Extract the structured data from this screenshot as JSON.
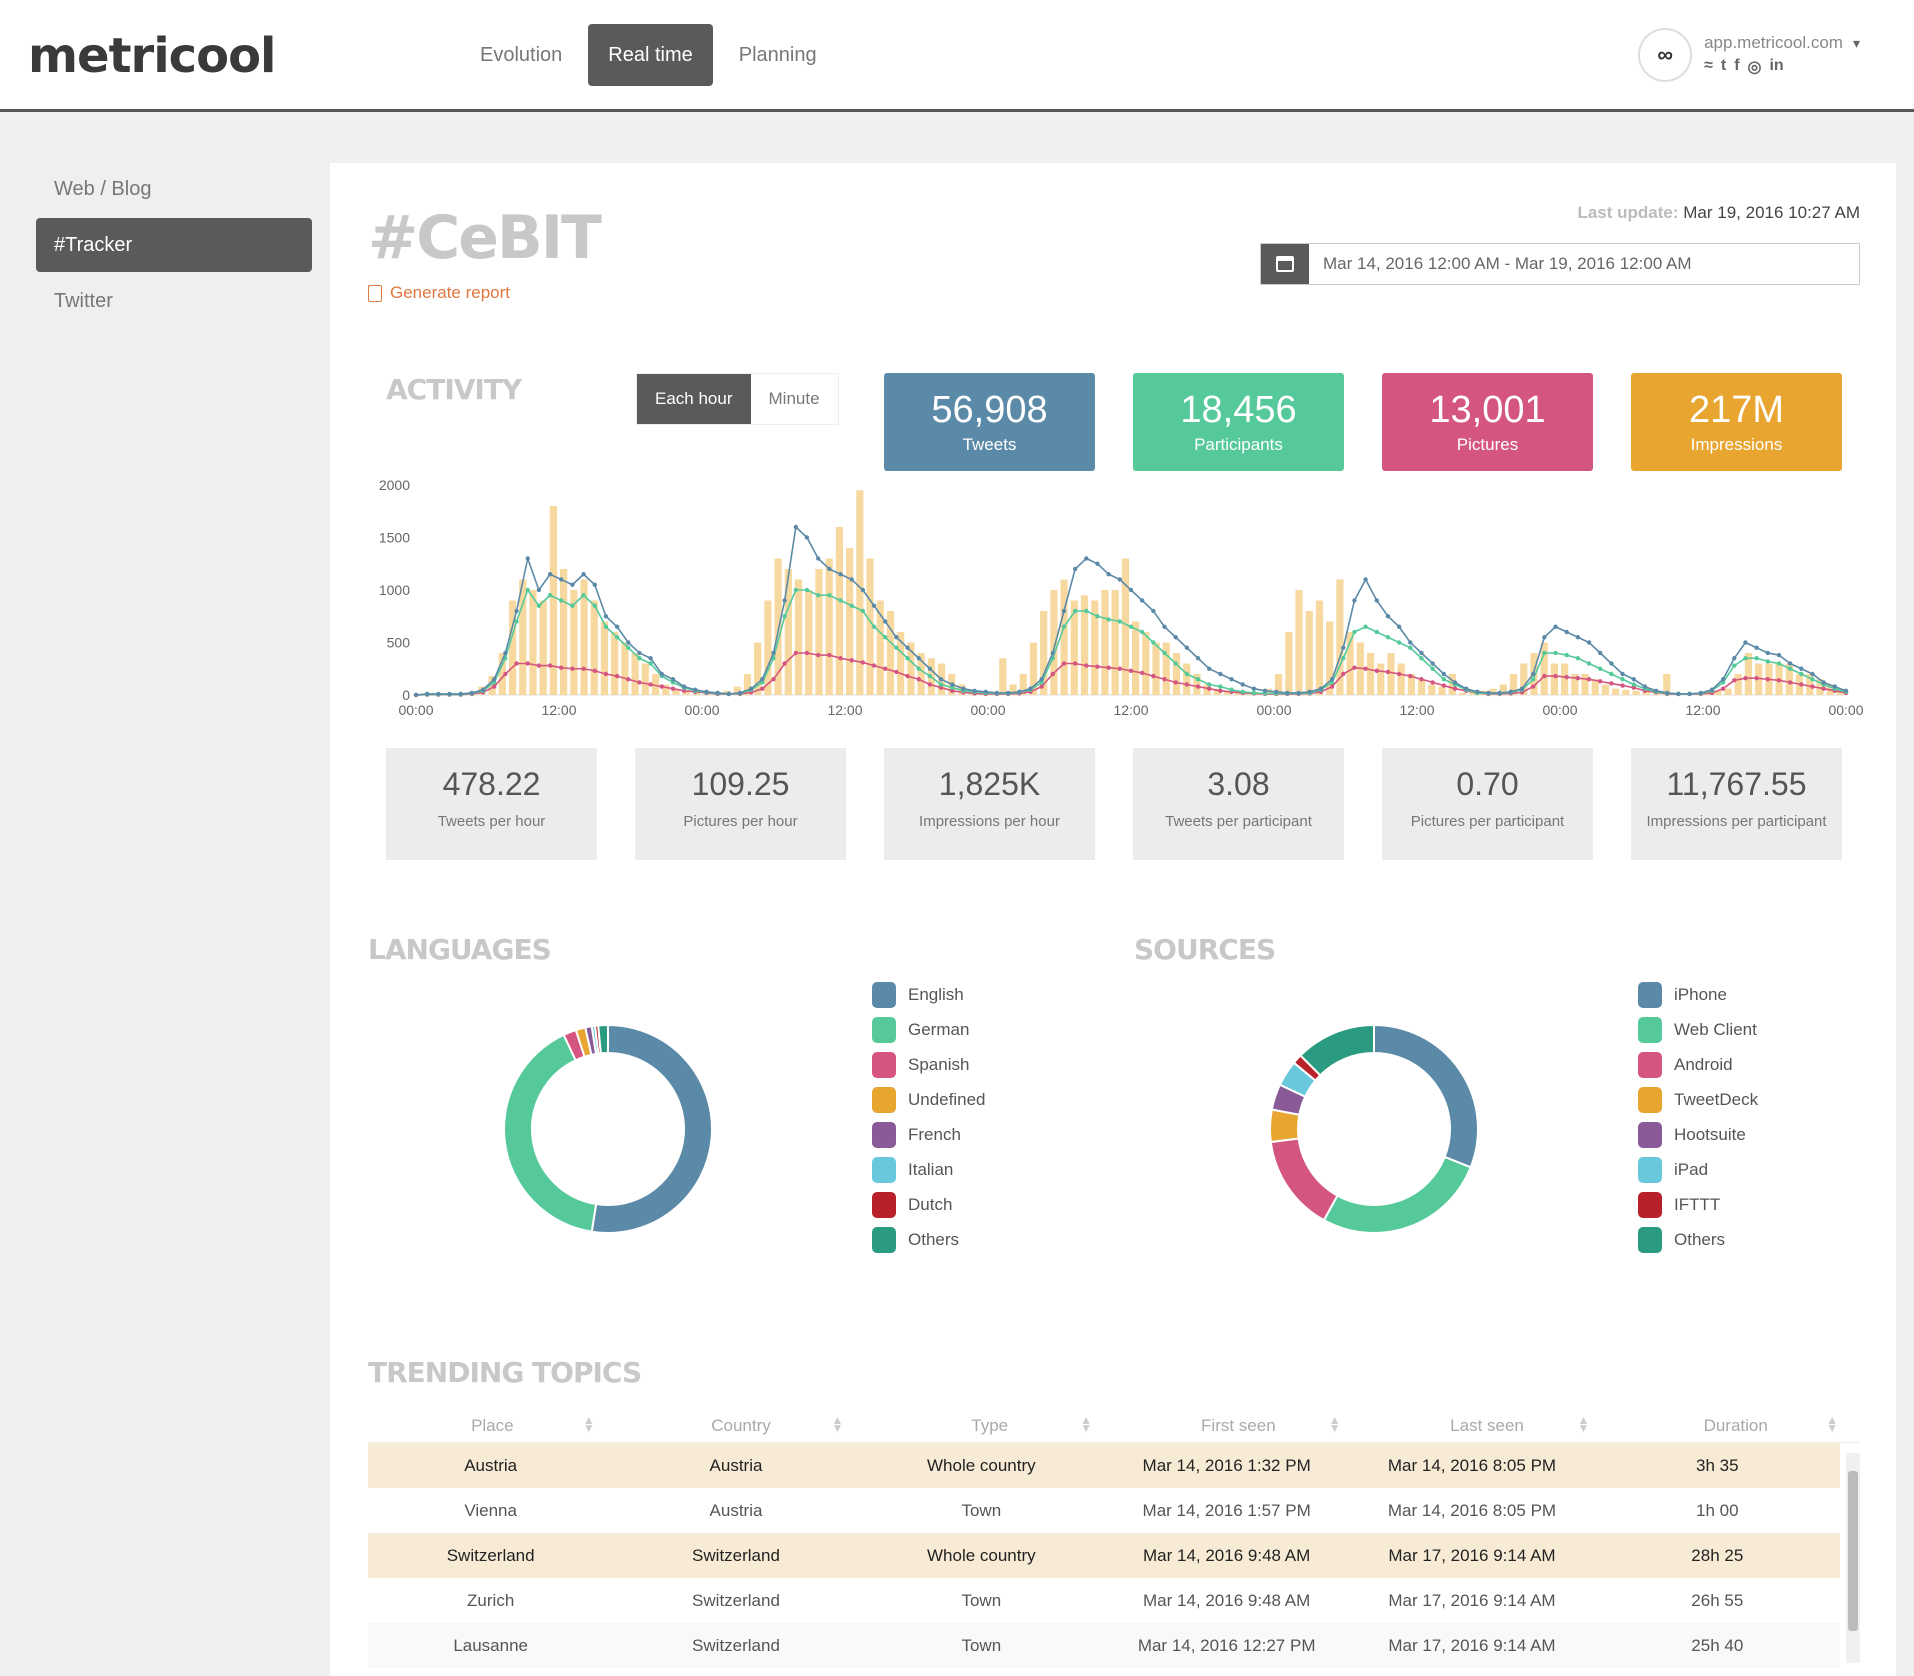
{
  "brand": "metricool",
  "nav": [
    "Evolution",
    "Real time",
    "Planning"
  ],
  "account": {
    "domain": "app.metricool.com",
    "avatar": "∞",
    "icons": [
      "rss-icon",
      "twitter-icon",
      "facebook-icon",
      "instagram-icon",
      "linkedin-icon"
    ]
  },
  "sidebar": [
    "Web / Blog",
    "#Tracker",
    "Twitter"
  ],
  "page": {
    "title": "#CeBIT",
    "generate_report": "Generate report",
    "last_update_label": "Last update:",
    "last_update_value": "Mar 19, 2016 10:27 AM",
    "date_range": "Mar 14, 2016 12:00 AM - Mar 19, 2016 12:00 AM"
  },
  "activity": {
    "title": "ACTIVITY",
    "toggle": [
      "Each hour",
      "Minute"
    ],
    "kpis": [
      {
        "value": "56,908",
        "label": "Tweets",
        "color": "#5b8aa8"
      },
      {
        "value": "18,456",
        "label": "Participants",
        "color": "#55c99a"
      },
      {
        "value": "13,001",
        "label": "Pictures",
        "color": "#d4557f"
      },
      {
        "value": "217M",
        "label": "Impressions",
        "color": "#e8a530"
      }
    ],
    "stats": [
      {
        "value": "478.22",
        "label": "Tweets per hour"
      },
      {
        "value": "109.25",
        "label": "Pictures per hour"
      },
      {
        "value": "1,825K",
        "label": "Impressions per hour"
      },
      {
        "value": "3.08",
        "label": "Tweets per participant"
      },
      {
        "value": "0.70",
        "label": "Pictures per participant"
      },
      {
        "value": "11,767.55",
        "label": "Impressions per participant"
      }
    ]
  },
  "chart_data": [
    {
      "type": "bar",
      "xticks": [
        "00:00",
        "12:00",
        "00:00",
        "12:00",
        "00:00",
        "12:00",
        "00:00",
        "12:00",
        "00:00",
        "12:00",
        "00:00"
      ],
      "yticks": [
        "0",
        "500",
        "1000",
        "1500",
        "2000"
      ],
      "ylim": [
        0,
        2000
      ],
      "bars": [
        0,
        0,
        0,
        0,
        0,
        30,
        80,
        180,
        400,
        900,
        1100,
        1000,
        900,
        1800,
        1200,
        1000,
        1100,
        900,
        700,
        600,
        500,
        400,
        300,
        200,
        100,
        60,
        40,
        20,
        10,
        20,
        40,
        80,
        200,
        500,
        900,
        1300,
        1200,
        1100,
        1000,
        1200,
        1300,
        1600,
        1400,
        1950,
        1300,
        900,
        800,
        600,
        500,
        400,
        350,
        300,
        200,
        100,
        50,
        40,
        30,
        350,
        100,
        200,
        500,
        800,
        1000,
        1100,
        900,
        950,
        900,
        1000,
        1000,
        1300,
        700,
        600,
        500,
        500,
        400,
        300,
        200,
        100,
        60,
        40,
        20,
        10,
        20,
        60,
        200,
        600,
        1000,
        800,
        900,
        700,
        1100,
        600,
        500,
        400,
        300,
        400,
        300,
        200,
        150,
        100,
        80,
        200,
        20,
        30,
        40,
        60,
        100,
        200,
        300,
        400,
        500,
        300,
        300,
        200,
        200,
        150,
        100,
        60,
        50,
        40,
        30,
        30,
        200,
        20,
        10,
        10,
        20,
        40,
        60,
        200,
        400,
        300,
        300,
        300,
        300,
        200,
        200,
        150,
        100,
        50
      ],
      "series": [
        {
          "name": "Tweets",
          "color": "#5b8aa8",
          "values": [
            0,
            10,
            10,
            10,
            10,
            20,
            50,
            150,
            400,
            800,
            1300,
            1000,
            1150,
            1100,
            1050,
            1150,
            1050,
            750,
            650,
            500,
            400,
            350,
            200,
            150,
            80,
            50,
            30,
            20,
            10,
            20,
            60,
            150,
            400,
            900,
            1600,
            1500,
            1300,
            1200,
            1150,
            1100,
            1000,
            850,
            700,
            550,
            450,
            350,
            250,
            150,
            100,
            60,
            40,
            30,
            20,
            20,
            30,
            60,
            150,
            400,
            800,
            1200,
            1300,
            1250,
            1150,
            1100,
            1000,
            900,
            800,
            650,
            550,
            450,
            350,
            250,
            200,
            150,
            100,
            60,
            40,
            30,
            20,
            20,
            30,
            60,
            150,
            450,
            900,
            1100,
            900,
            750,
            650,
            500,
            400,
            300,
            200,
            120,
            60,
            30,
            20,
            20,
            30,
            60,
            200,
            550,
            650,
            600,
            550,
            500,
            400,
            300,
            200,
            150,
            80,
            40,
            20,
            10,
            10,
            20,
            50,
            150,
            350,
            500,
            450,
            400,
            380,
            300,
            250,
            200,
            120,
            80,
            40
          ]
        },
        {
          "name": "Participants",
          "color": "#55c99a",
          "values": [
            0,
            5,
            5,
            5,
            5,
            15,
            40,
            120,
            350,
            700,
            1000,
            850,
            950,
            900,
            850,
            950,
            850,
            650,
            550,
            450,
            350,
            300,
            180,
            120,
            70,
            40,
            25,
            15,
            10,
            15,
            50,
            120,
            350,
            750,
            1000,
            1000,
            950,
            950,
            900,
            850,
            800,
            650,
            550,
            450,
            350,
            250,
            180,
            100,
            70,
            40,
            30,
            20,
            15,
            15,
            25,
            50,
            120,
            350,
            650,
            800,
            800,
            750,
            720,
            700,
            650,
            600,
            500,
            400,
            300,
            200,
            150,
            100,
            80,
            50,
            30,
            20,
            15,
            15,
            15,
            15,
            20,
            50,
            120,
            350,
            600,
            650,
            600,
            550,
            500,
            450,
            350,
            250,
            150,
            100,
            50,
            20,
            15,
            15,
            25,
            50,
            150,
            400,
            400,
            380,
            350,
            300,
            250,
            200,
            150,
            100,
            60,
            30,
            15,
            10,
            10,
            15,
            40,
            120,
            280,
            350,
            350,
            320,
            300,
            250,
            200,
            150,
            100,
            60,
            30
          ]
        },
        {
          "name": "Pictures",
          "color": "#d4557f",
          "values": [
            0,
            3,
            3,
            3,
            3,
            10,
            25,
            80,
            200,
            300,
            300,
            280,
            280,
            260,
            250,
            250,
            230,
            200,
            180,
            150,
            120,
            100,
            80,
            60,
            40,
            30,
            20,
            10,
            10,
            10,
            25,
            60,
            150,
            300,
            400,
            400,
            380,
            380,
            350,
            330,
            310,
            280,
            250,
            220,
            180,
            150,
            100,
            70,
            40,
            25,
            15,
            10,
            10,
            10,
            15,
            30,
            80,
            200,
            300,
            300,
            280,
            270,
            260,
            250,
            230,
            210,
            180,
            150,
            120,
            100,
            80,
            60,
            40,
            30,
            20,
            15,
            10,
            10,
            10,
            10,
            15,
            30,
            80,
            200,
            260,
            250,
            230,
            220,
            200,
            180,
            150,
            120,
            90,
            60,
            40,
            20,
            10,
            10,
            15,
            25,
            80,
            180,
            180,
            170,
            160,
            150,
            130,
            110,
            90,
            70,
            40,
            25,
            10,
            10,
            10,
            10,
            20,
            60,
            140,
            160,
            160,
            150,
            140,
            120,
            100,
            80,
            60,
            40,
            20
          ]
        }
      ]
    },
    {
      "type": "pie",
      "title": "LANGUAGES",
      "labels": [
        "English",
        "German",
        "Spanish",
        "Undefined",
        "French",
        "Italian",
        "Dutch",
        "Others"
      ],
      "colors": [
        "#5b8aa8",
        "#55c99a",
        "#d4557f",
        "#e8a530",
        "#8a5a98",
        "#6ac8dc",
        "#b8202a",
        "#2a9a80"
      ],
      "values": [
        52.5,
        40.5,
        2.0,
        1.5,
        1.0,
        0.5,
        0.5,
        1.5
      ]
    },
    {
      "type": "pie",
      "title": "SOURCES",
      "labels": [
        "iPhone",
        "Web Client",
        "Android",
        "TweetDeck",
        "Hootsuite",
        "iPad",
        "IFTTT",
        "Others"
      ],
      "colors": [
        "#5b8aa8",
        "#55c99a",
        "#d4557f",
        "#e8a530",
        "#8a5a98",
        "#6ac8dc",
        "#b8202a",
        "#2a9a80"
      ],
      "values": [
        31,
        27,
        15,
        5,
        4,
        4,
        1.5,
        12.5
      ]
    }
  ],
  "trending": {
    "title": "TRENDING TOPICS",
    "columns": [
      "Place",
      "Country",
      "Type",
      "First seen",
      "Last seen",
      "Duration"
    ],
    "rows": [
      [
        "Austria",
        "Austria",
        "Whole country",
        "Mar 14, 2016 1:32 PM",
        "Mar 14, 2016 8:05 PM",
        "3h 35"
      ],
      [
        "Vienna",
        "Austria",
        "Town",
        "Mar 14, 2016 1:57 PM",
        "Mar 14, 2016 8:05 PM",
        "1h 00"
      ],
      [
        "Switzerland",
        "Switzerland",
        "Whole country",
        "Mar 14, 2016 9:48 AM",
        "Mar 17, 2016 9:14 AM",
        "28h 25"
      ],
      [
        "Zurich",
        "Switzerland",
        "Town",
        "Mar 14, 2016 9:48 AM",
        "Mar 17, 2016 9:14 AM",
        "26h 55"
      ],
      [
        "Lausanne",
        "Switzerland",
        "Town",
        "Mar 14, 2016 12:27 PM",
        "Mar 17, 2016 9:14 AM",
        "25h 40"
      ]
    ]
  }
}
